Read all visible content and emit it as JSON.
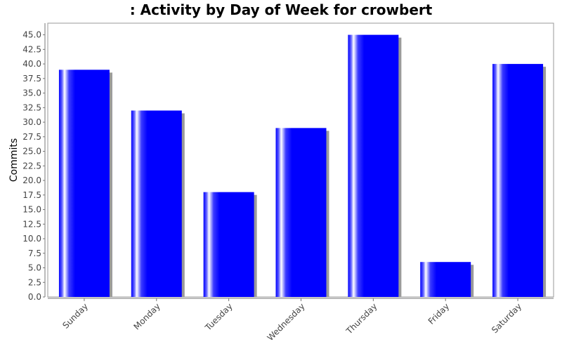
{
  "chart_data": {
    "type": "bar",
    "title": ": Activity by Day of Week for crowbert",
    "xlabel": "",
    "ylabel": "Commits",
    "ylim": [
      0,
      47
    ],
    "categories": [
      "Sunday",
      "Monday",
      "Tuesday",
      "Wednesday",
      "Thursday",
      "Friday",
      "Saturday"
    ],
    "values": [
      39,
      32,
      18,
      29,
      45,
      6,
      40
    ],
    "y_ticks": [
      "0.0",
      "2.5",
      "5.0",
      "7.5",
      "10.0",
      "12.5",
      "15.0",
      "17.5",
      "20.0",
      "22.5",
      "25.0",
      "27.5",
      "30.0",
      "32.5",
      "35.0",
      "37.5",
      "40.0",
      "42.5",
      "45.0"
    ],
    "bar_color": "#0000ff",
    "shadow_color": "#9a9a9a",
    "grid": false,
    "legend": "none"
  }
}
